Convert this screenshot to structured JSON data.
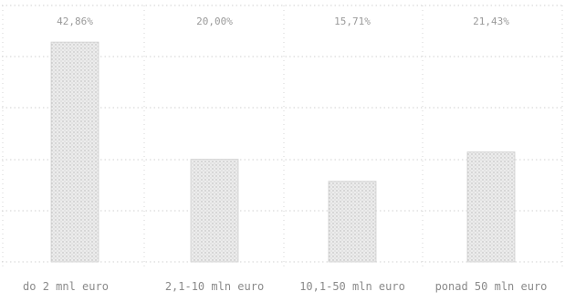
{
  "chart_data": {
    "type": "bar",
    "categories": [
      "do 2 mnl euro",
      "2,1-10 mln euro",
      "10,1-50 mln euro",
      "ponad 50 mln euro"
    ],
    "values": [
      42.86,
      20.0,
      15.71,
      21.43
    ],
    "value_labels": [
      "42,86%",
      "20,00%",
      "15,71%",
      "21,43%"
    ],
    "ylim": [
      0,
      50
    ],
    "grid": true,
    "legend": "none",
    "colors": {
      "bar_fill": "#e6e6e6",
      "bar_stipple": "#b8b8b8",
      "bar_outline": "#cfcfcf",
      "grid": "#c4c4c4",
      "label_text": "#8a8a8a",
      "value_text": "#9a9a9a"
    }
  }
}
